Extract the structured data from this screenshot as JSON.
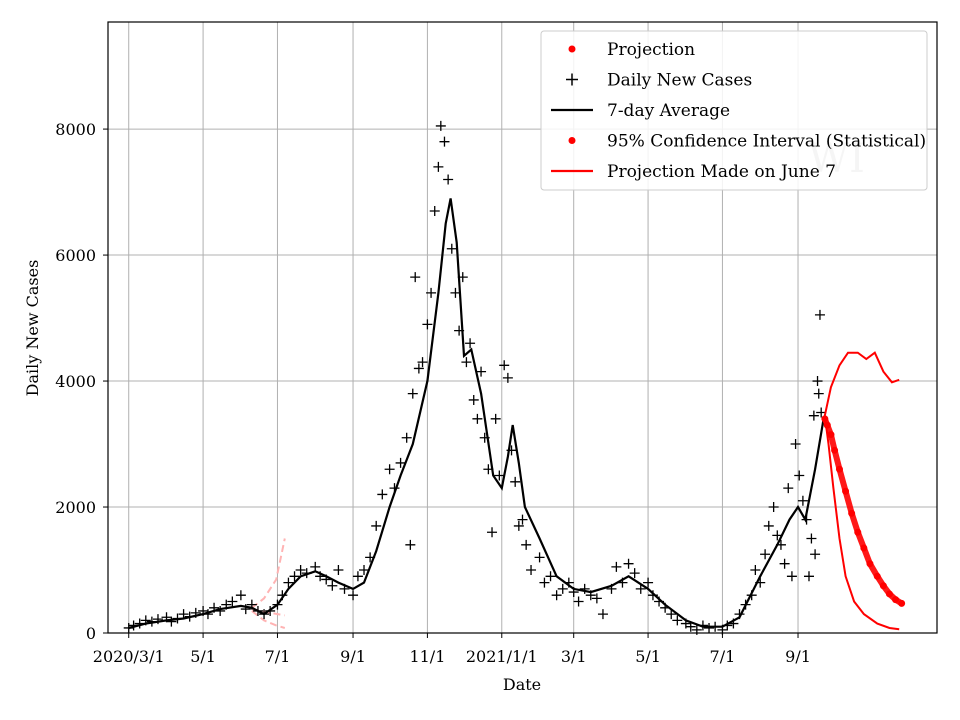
{
  "chart_data": {
    "type": "line",
    "xlabel": "Date",
    "ylabel": "Daily New Cases",
    "xlim": [
      "2020-02-13",
      "2021-12-24"
    ],
    "ylim": [
      0,
      9700
    ],
    "grid": true,
    "legend_position": "top-right",
    "watermark": "WI",
    "x_ticks": [
      {
        "date": "2020-03-01",
        "label": "2020/3/1"
      },
      {
        "date": "2020-05-01",
        "label": "5/1"
      },
      {
        "date": "2020-07-01",
        "label": "7/1"
      },
      {
        "date": "2020-09-01",
        "label": "9/1"
      },
      {
        "date": "2020-11-01",
        "label": "11/1"
      },
      {
        "date": "2021-01-01",
        "label": "2021/1/1"
      },
      {
        "date": "2021-03-01",
        "label": "3/1"
      },
      {
        "date": "2021-05-01",
        "label": "5/1"
      },
      {
        "date": "2021-07-01",
        "label": "7/1"
      },
      {
        "date": "2021-09-01",
        "label": "9/1"
      }
    ],
    "y_ticks": [
      0,
      2000,
      4000,
      6000,
      8000
    ],
    "legend": [
      {
        "label": "Projection",
        "kind": "dot",
        "color": "#ff0000"
      },
      {
        "label": "Daily New Cases",
        "kind": "plus",
        "color": "#000000"
      },
      {
        "label": "7-day Average",
        "kind": "line",
        "color": "#000000"
      },
      {
        "label": "95% Confidence Interval (Statistical)",
        "kind": "dot",
        "color": "#ff0000"
      },
      {
        "label": "Projection Made on June 7",
        "kind": "line",
        "color": "#ff0000"
      }
    ],
    "series": {
      "seven_day_average": {
        "color": "#000000",
        "points": [
          [
            "2020-03-01",
            80
          ],
          [
            "2020-03-15",
            150
          ],
          [
            "2020-04-01",
            200
          ],
          [
            "2020-04-15",
            230
          ],
          [
            "2020-05-01",
            300
          ],
          [
            "2020-05-15",
            380
          ],
          [
            "2020-06-01",
            430
          ],
          [
            "2020-06-10",
            400
          ],
          [
            "2020-06-20",
            300
          ],
          [
            "2020-07-01",
            450
          ],
          [
            "2020-07-10",
            700
          ],
          [
            "2020-07-20",
            900
          ],
          [
            "2020-08-01",
            980
          ],
          [
            "2020-08-10",
            900
          ],
          [
            "2020-08-20",
            800
          ],
          [
            "2020-09-01",
            700
          ],
          [
            "2020-09-10",
            800
          ],
          [
            "2020-09-20",
            1300
          ],
          [
            "2020-10-01",
            2000
          ],
          [
            "2020-10-10",
            2500
          ],
          [
            "2020-10-20",
            3000
          ],
          [
            "2020-11-01",
            4000
          ],
          [
            "2020-11-10",
            5400
          ],
          [
            "2020-11-16",
            6500
          ],
          [
            "2020-11-20",
            6900
          ],
          [
            "2020-11-25",
            6200
          ],
          [
            "2020-12-01",
            4400
          ],
          [
            "2020-12-07",
            4500
          ],
          [
            "2020-12-15",
            3800
          ],
          [
            "2020-12-25",
            2500
          ],
          [
            "2021-01-01",
            2300
          ],
          [
            "2021-01-06",
            2800
          ],
          [
            "2021-01-10",
            3300
          ],
          [
            "2021-01-15",
            2700
          ],
          [
            "2021-01-20",
            2000
          ],
          [
            "2021-02-01",
            1500
          ],
          [
            "2021-02-15",
            900
          ],
          [
            "2021-03-01",
            700
          ],
          [
            "2021-03-15",
            650
          ],
          [
            "2021-04-01",
            750
          ],
          [
            "2021-04-15",
            900
          ],
          [
            "2021-05-01",
            700
          ],
          [
            "2021-05-15",
            450
          ],
          [
            "2021-06-01",
            200
          ],
          [
            "2021-06-15",
            100
          ],
          [
            "2021-07-01",
            100
          ],
          [
            "2021-07-15",
            250
          ],
          [
            "2021-08-01",
            900
          ],
          [
            "2021-08-15",
            1400
          ],
          [
            "2021-08-25",
            1800
          ],
          [
            "2021-09-01",
            2000
          ],
          [
            "2021-09-07",
            1800
          ],
          [
            "2021-09-15",
            2600
          ],
          [
            "2021-09-22",
            3400
          ]
        ]
      },
      "daily_new_cases": {
        "color": "#000000",
        "points": [
          [
            "2020-03-01",
            80
          ],
          [
            "2020-03-05",
            120
          ],
          [
            "2020-03-10",
            150
          ],
          [
            "2020-03-15",
            200
          ],
          [
            "2020-03-20",
            180
          ],
          [
            "2020-03-25",
            220
          ],
          [
            "2020-04-01",
            250
          ],
          [
            "2020-04-05",
            180
          ],
          [
            "2020-04-10",
            230
          ],
          [
            "2020-04-15",
            300
          ],
          [
            "2020-04-20",
            260
          ],
          [
            "2020-04-25",
            320
          ],
          [
            "2020-05-01",
            350
          ],
          [
            "2020-05-05",
            300
          ],
          [
            "2020-05-10",
            400
          ],
          [
            "2020-05-15",
            350
          ],
          [
            "2020-05-20",
            450
          ],
          [
            "2020-05-25",
            500
          ],
          [
            "2020-06-01",
            600
          ],
          [
            "2020-06-05",
            380
          ],
          [
            "2020-06-10",
            450
          ],
          [
            "2020-06-15",
            350
          ],
          [
            "2020-06-20",
            300
          ],
          [
            "2020-06-25",
            350
          ],
          [
            "2020-07-01",
            450
          ],
          [
            "2020-07-05",
            600
          ],
          [
            "2020-07-10",
            800
          ],
          [
            "2020-07-15",
            900
          ],
          [
            "2020-07-20",
            1000
          ],
          [
            "2020-07-25",
            950
          ],
          [
            "2020-08-01",
            1050
          ],
          [
            "2020-08-05",
            900
          ],
          [
            "2020-08-10",
            850
          ],
          [
            "2020-08-15",
            750
          ],
          [
            "2020-08-20",
            1000
          ],
          [
            "2020-08-25",
            700
          ],
          [
            "2020-09-01",
            600
          ],
          [
            "2020-09-05",
            900
          ],
          [
            "2020-09-10",
            1000
          ],
          [
            "2020-09-15",
            1200
          ],
          [
            "2020-09-20",
            1700
          ],
          [
            "2020-09-25",
            2200
          ],
          [
            "2020-10-01",
            2600
          ],
          [
            "2020-10-05",
            2300
          ],
          [
            "2020-10-10",
            2700
          ],
          [
            "2020-10-15",
            3100
          ],
          [
            "2020-10-18",
            1400
          ],
          [
            "2020-10-20",
            3800
          ],
          [
            "2020-10-22",
            5650
          ],
          [
            "2020-10-25",
            4200
          ],
          [
            "2020-10-28",
            4300
          ],
          [
            "2020-11-01",
            4900
          ],
          [
            "2020-11-04",
            5400
          ],
          [
            "2020-11-07",
            6700
          ],
          [
            "2020-11-10",
            7400
          ],
          [
            "2020-11-12",
            8050
          ],
          [
            "2020-11-15",
            7800
          ],
          [
            "2020-11-18",
            7200
          ],
          [
            "2020-11-21",
            6100
          ],
          [
            "2020-11-24",
            5400
          ],
          [
            "2020-11-27",
            4800
          ],
          [
            "2020-11-30",
            5650
          ],
          [
            "2020-12-03",
            4300
          ],
          [
            "2020-12-06",
            4600
          ],
          [
            "2020-12-09",
            3700
          ],
          [
            "2020-12-12",
            3400
          ],
          [
            "2020-12-15",
            4150
          ],
          [
            "2020-12-18",
            3100
          ],
          [
            "2020-12-21",
            2600
          ],
          [
            "2020-12-24",
            1600
          ],
          [
            "2020-12-27",
            3400
          ],
          [
            "2020-12-30",
            2500
          ],
          [
            "2021-01-03",
            4250
          ],
          [
            "2021-01-06",
            4050
          ],
          [
            "2021-01-09",
            2900
          ],
          [
            "2021-01-12",
            2400
          ],
          [
            "2021-01-15",
            1700
          ],
          [
            "2021-01-18",
            1800
          ],
          [
            "2021-01-21",
            1400
          ],
          [
            "2021-01-25",
            1000
          ],
          [
            "2021-02-01",
            1200
          ],
          [
            "2021-02-05",
            800
          ],
          [
            "2021-02-10",
            900
          ],
          [
            "2021-02-15",
            600
          ],
          [
            "2021-02-20",
            700
          ],
          [
            "2021-02-25",
            800
          ],
          [
            "2021-03-01",
            650
          ],
          [
            "2021-03-05",
            500
          ],
          [
            "2021-03-10",
            700
          ],
          [
            "2021-03-15",
            600
          ],
          [
            "2021-03-20",
            550
          ],
          [
            "2021-03-25",
            300
          ],
          [
            "2021-04-01",
            700
          ],
          [
            "2021-04-05",
            1050
          ],
          [
            "2021-04-10",
            800
          ],
          [
            "2021-04-15",
            1100
          ],
          [
            "2021-04-20",
            950
          ],
          [
            "2021-04-25",
            700
          ],
          [
            "2021-05-01",
            800
          ],
          [
            "2021-05-05",
            600
          ],
          [
            "2021-05-10",
            500
          ],
          [
            "2021-05-15",
            400
          ],
          [
            "2021-05-20",
            300
          ],
          [
            "2021-05-25",
            200
          ],
          [
            "2021-06-01",
            150
          ],
          [
            "2021-06-05",
            100
          ],
          [
            "2021-06-10",
            50
          ],
          [
            "2021-06-15",
            120
          ],
          [
            "2021-06-20",
            80
          ],
          [
            "2021-06-25",
            100
          ],
          [
            "2021-07-01",
            50
          ],
          [
            "2021-07-05",
            120
          ],
          [
            "2021-07-10",
            150
          ],
          [
            "2021-07-15",
            300
          ],
          [
            "2021-07-20",
            450
          ],
          [
            "2021-07-25",
            600
          ],
          [
            "2021-07-28",
            1000
          ],
          [
            "2021-08-01",
            800
          ],
          [
            "2021-08-05",
            1250
          ],
          [
            "2021-08-08",
            1700
          ],
          [
            "2021-08-12",
            2000
          ],
          [
            "2021-08-15",
            1550
          ],
          [
            "2021-08-18",
            1400
          ],
          [
            "2021-08-21",
            1100
          ],
          [
            "2021-08-24",
            2300
          ],
          [
            "2021-08-27",
            900
          ],
          [
            "2021-08-30",
            3000
          ],
          [
            "2021-09-02",
            2500
          ],
          [
            "2021-09-05",
            2100
          ],
          [
            "2021-09-08",
            1800
          ],
          [
            "2021-09-10",
            900
          ],
          [
            "2021-09-12",
            1500
          ],
          [
            "2021-09-14",
            3450
          ],
          [
            "2021-09-15",
            1250
          ],
          [
            "2021-09-17",
            4000
          ],
          [
            "2021-09-18",
            3800
          ],
          [
            "2021-09-19",
            5050
          ],
          [
            "2021-09-20",
            3500
          ]
        ]
      },
      "projection": {
        "color": "#ff0000",
        "points": [
          [
            "2021-09-23",
            3400
          ],
          [
            "2021-09-25",
            3300
          ],
          [
            "2021-09-28",
            3150
          ],
          [
            "2021-10-01",
            2900
          ],
          [
            "2021-10-05",
            2600
          ],
          [
            "2021-10-10",
            2250
          ],
          [
            "2021-10-15",
            1900
          ],
          [
            "2021-10-20",
            1600
          ],
          [
            "2021-10-25",
            1350
          ],
          [
            "2021-10-30",
            1100
          ],
          [
            "2021-11-05",
            900
          ],
          [
            "2021-11-10",
            750
          ],
          [
            "2021-11-15",
            620
          ],
          [
            "2021-11-20",
            530
          ],
          [
            "2021-11-25",
            470
          ]
        ]
      },
      "ci_upper": {
        "color": "#ff0000",
        "points": [
          [
            "2021-09-23",
            3450
          ],
          [
            "2021-09-28",
            3900
          ],
          [
            "2021-10-05",
            4250
          ],
          [
            "2021-10-12",
            4450
          ],
          [
            "2021-10-20",
            4450
          ],
          [
            "2021-10-27",
            4350
          ],
          [
            "2021-11-03",
            4450
          ],
          [
            "2021-11-10",
            4150
          ],
          [
            "2021-11-17",
            3980
          ],
          [
            "2021-11-23",
            4020
          ]
        ]
      },
      "ci_lower": {
        "color": "#ff0000",
        "points": [
          [
            "2021-09-23",
            3450
          ],
          [
            "2021-09-26",
            3000
          ],
          [
            "2021-09-30",
            2300
          ],
          [
            "2021-10-05",
            1500
          ],
          [
            "2021-10-10",
            900
          ],
          [
            "2021-10-17",
            500
          ],
          [
            "2021-10-25",
            300
          ],
          [
            "2021-11-05",
            150
          ],
          [
            "2021-11-15",
            80
          ],
          [
            "2021-11-23",
            60
          ]
        ]
      },
      "june7_projection": {
        "color": "#ffb3b3",
        "upper_points": [
          [
            "2020-06-10",
            400
          ],
          [
            "2020-06-20",
            550
          ],
          [
            "2020-06-30",
            850
          ],
          [
            "2020-07-07",
            1500
          ]
        ],
        "lower_points": [
          [
            "2020-06-10",
            350
          ],
          [
            "2020-06-20",
            200
          ],
          [
            "2020-06-30",
            120
          ],
          [
            "2020-07-07",
            80
          ]
        ],
        "mid_points": [
          [
            "2020-06-10",
            380
          ],
          [
            "2020-06-25",
            320
          ],
          [
            "2020-07-07",
            280
          ]
        ]
      }
    }
  }
}
